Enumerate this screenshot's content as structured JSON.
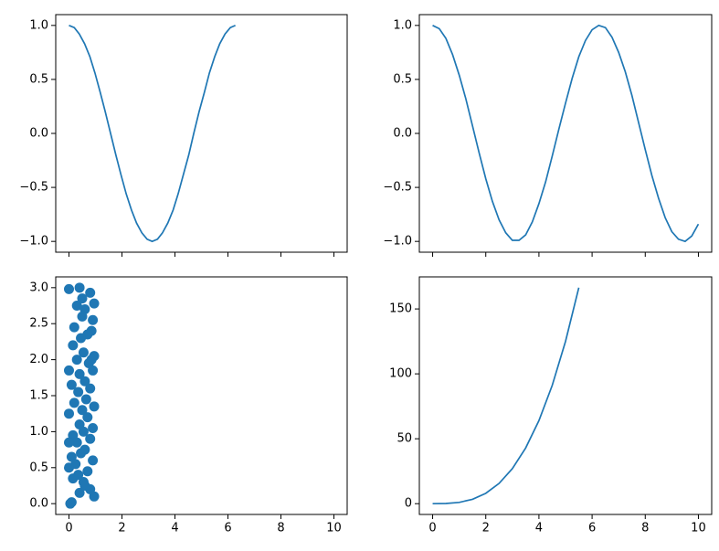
{
  "chart_data": [
    {
      "type": "line",
      "color": "#1f77b4",
      "xlim": [
        -0.5,
        10.5
      ],
      "ylim": [
        -1.1,
        1.1
      ],
      "xticks": [
        0,
        2,
        4,
        6,
        8,
        10
      ],
      "show_xtick_labels": false,
      "yticks": [
        {
          "value": -1,
          "label": "−1.0"
        },
        {
          "value": -0.5,
          "label": "−0.5"
        },
        {
          "value": 0,
          "label": "0.0"
        },
        0.5,
        {
          "value": 1,
          "label": "1.0"
        }
      ],
      "x": [
        0,
        0.2,
        0.39,
        0.59,
        0.79,
        0.98,
        1.18,
        1.37,
        1.57,
        1.77,
        1.96,
        2.16,
        2.36,
        2.55,
        2.75,
        2.95,
        3.14,
        3.34,
        3.53,
        3.73,
        3.93,
        4.12,
        4.32,
        4.52,
        4.71,
        4.91,
        5.11,
        5.3,
        5.5,
        5.69,
        5.89,
        6.09,
        6.28
      ],
      "y": [
        1,
        0.98,
        0.92,
        0.83,
        0.71,
        0.56,
        0.38,
        0.2,
        0,
        -0.2,
        -0.38,
        -0.56,
        -0.71,
        -0.83,
        -0.92,
        -0.98,
        -1,
        -0.98,
        -0.92,
        -0.83,
        -0.71,
        -0.56,
        -0.38,
        -0.2,
        0,
        0.2,
        0.38,
        0.56,
        0.71,
        0.83,
        0.92,
        0.98,
        1
      ]
    },
    {
      "type": "line",
      "color": "#1f77b4",
      "xlim": [
        -0.5,
        10.5
      ],
      "ylim": [
        -1.1,
        1.1
      ],
      "xticks": [
        0,
        2,
        4,
        6,
        8,
        10
      ],
      "show_xtick_labels": false,
      "yticks": [
        {
          "value": -1,
          "label": "−1.0"
        },
        {
          "value": -0.5,
          "label": "−0.5"
        },
        {
          "value": 0,
          "label": "0.0"
        },
        0.5,
        {
          "value": 1,
          "label": "1.0"
        }
      ],
      "x": [
        0,
        0.25,
        0.5,
        0.75,
        1,
        1.25,
        1.5,
        1.75,
        2,
        2.25,
        2.5,
        2.75,
        3,
        3.25,
        3.5,
        3.75,
        4,
        4.25,
        4.5,
        4.75,
        5,
        5.25,
        5.5,
        5.75,
        6,
        6.25,
        6.5,
        6.75,
        7,
        7.25,
        7.5,
        7.75,
        8,
        8.25,
        8.5,
        8.75,
        9,
        9.25,
        9.5,
        9.75,
        10
      ],
      "y": [
        1,
        0.97,
        0.88,
        0.73,
        0.54,
        0.32,
        0.07,
        -0.18,
        -0.42,
        -0.63,
        -0.8,
        -0.92,
        -0.99,
        -0.99,
        -0.94,
        -0.82,
        -0.65,
        -0.45,
        -0.21,
        0.04,
        0.28,
        0.51,
        0.71,
        0.86,
        0.96,
        1,
        0.98,
        0.89,
        0.75,
        0.57,
        0.35,
        0.1,
        -0.15,
        -0.39,
        -0.6,
        -0.78,
        -0.91,
        -0.98,
        -1,
        -0.95,
        -0.84
      ]
    },
    {
      "type": "scatter",
      "color": "#1f77b4",
      "xlim": [
        -0.5,
        10.5
      ],
      "ylim": [
        -0.15,
        3.15
      ],
      "xticks": [
        0,
        2,
        4,
        6,
        8,
        10
      ],
      "show_xtick_labels": true,
      "yticks": [
        {
          "value": 0,
          "label": "0.0"
        },
        0.5,
        {
          "value": 1,
          "label": "1.0"
        },
        1.5,
        {
          "value": 2,
          "label": "2.0"
        },
        2.5,
        {
          "value": 3,
          "label": "3.0"
        }
      ],
      "x": [
        0.0,
        0.4,
        0.8,
        0.95,
        0.3,
        0.6,
        0.9,
        0.5,
        0.2,
        0.85,
        0.7,
        0.45,
        0.15,
        0.95,
        0.55,
        0.3,
        0.75,
        0.0,
        0.9,
        0.4,
        0.6,
        0.1,
        0.8,
        0.35,
        0.65,
        0.2,
        0.95,
        0.5,
        0.0,
        0.7,
        0.4,
        0.9,
        0.55,
        0.15,
        0.8,
        0.3,
        0.0,
        0.6,
        0.45,
        0.1,
        0.9,
        0.25,
        0.0,
        0.7,
        0.35,
        0.15,
        0.55,
        0.8,
        0.4,
        0.95,
        0.1,
        0.05,
        0.6,
        0.85,
        0.5
      ],
      "y": [
        2.98,
        3.0,
        2.93,
        2.78,
        2.75,
        2.7,
        2.55,
        2.6,
        2.45,
        2.4,
        2.35,
        2.3,
        2.2,
        2.05,
        2.1,
        2.0,
        1.95,
        1.85,
        1.85,
        1.8,
        1.7,
        1.65,
        1.6,
        1.55,
        1.45,
        1.4,
        1.35,
        1.3,
        1.25,
        1.2,
        1.1,
        1.05,
        1.0,
        0.95,
        0.9,
        0.85,
        0.85,
        0.75,
        0.7,
        0.65,
        0.6,
        0.55,
        0.5,
        0.45,
        0.4,
        0.35,
        0.3,
        0.2,
        0.15,
        0.1,
        0.02,
        0.0,
        0.25,
        2.0,
        2.85
      ]
    },
    {
      "type": "line",
      "color": "#1f77b4",
      "xlim": [
        -0.5,
        10.5
      ],
      "ylim": [
        -8.3,
        174.7
      ],
      "xticks": [
        0,
        2,
        4,
        6,
        8,
        10
      ],
      "show_xtick_labels": true,
      "yticks": [
        0,
        50,
        100,
        150
      ],
      "x": [
        0,
        0.5,
        1,
        1.5,
        2,
        2.5,
        3,
        3.5,
        4,
        4.5,
        5,
        5.5
      ],
      "y": [
        0,
        0.125,
        1,
        3.375,
        8,
        15.625,
        27,
        42.875,
        64,
        91.125,
        125,
        166.375
      ]
    }
  ]
}
